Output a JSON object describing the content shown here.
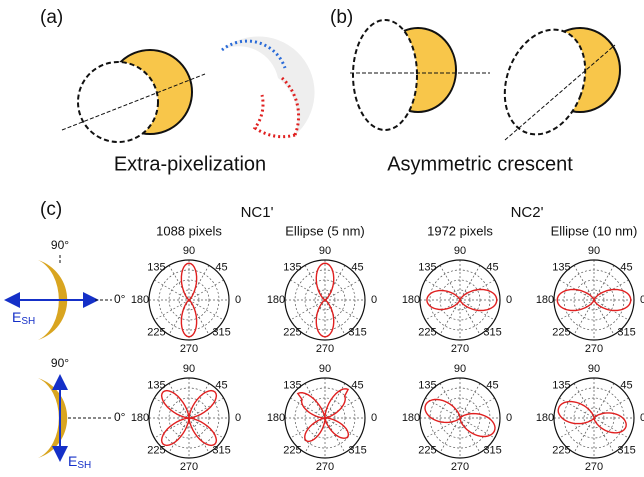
{
  "panels": {
    "a": {
      "label": "(a)",
      "caption": "Extra-pixelization"
    },
    "b": {
      "label": "(b)",
      "caption": "Asymmetric crescent"
    },
    "c": {
      "label": "(c)",
      "groups": [
        {
          "title": "NC1'",
          "columns": [
            "1088 pixels",
            "Ellipse (5 nm)"
          ]
        },
        {
          "title": "NC2'",
          "columns": [
            "1972 pixels",
            "Ellipse (10 nm)"
          ]
        }
      ],
      "angle_labels": [
        "90",
        "45",
        "0",
        "315",
        "270",
        "225",
        "180",
        "135"
      ],
      "schematic": {
        "angle_top": "90°",
        "angle_right": "0°",
        "field": "E",
        "field_sub": "SH"
      }
    }
  }
}
